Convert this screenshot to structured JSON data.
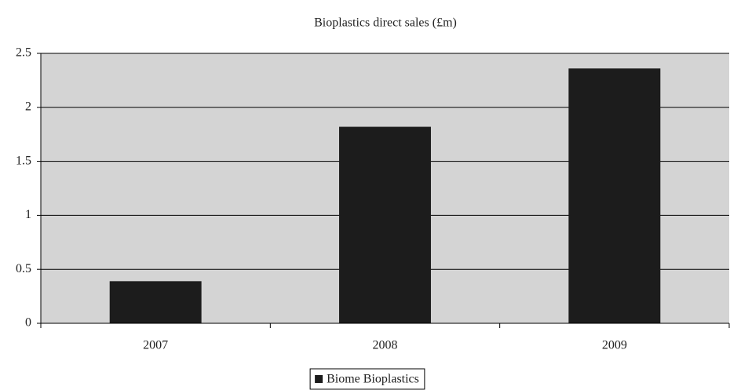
{
  "chart_data": {
    "type": "bar",
    "title": "Bioplastics direct sales (£m)",
    "categories": [
      "2007",
      "2008",
      "2009"
    ],
    "series": [
      {
        "name": "Biome Bioplastics",
        "color": "#1c1c1c",
        "values": [
          0.39,
          1.82,
          2.36
        ]
      }
    ],
    "ylim": [
      0,
      2.5
    ],
    "yticks": [
      0,
      0.5,
      1,
      1.5,
      2,
      2.5
    ],
    "grid": true,
    "legend": "bottom",
    "plot_background": "#d4d4d4"
  }
}
